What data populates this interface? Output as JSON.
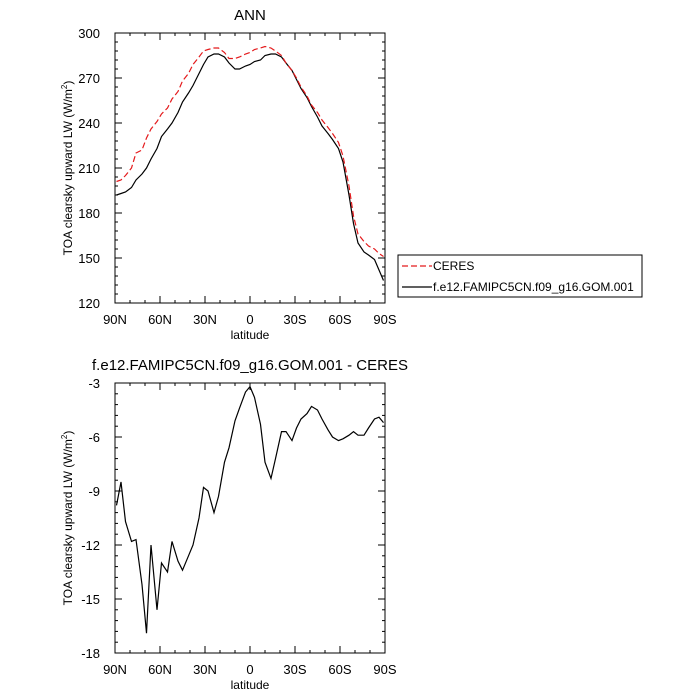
{
  "chart_data": [
    {
      "type": "line",
      "title": "ANN",
      "xlabel": "latitude",
      "ylabel": "TOA clearsky upward LW (W/m²)",
      "xlim": [
        90,
        -90
      ],
      "ylim": [
        120,
        300
      ],
      "xticks": [
        90,
        60,
        30,
        0,
        -30,
        -60,
        -90
      ],
      "xtick_labels": [
        "90N",
        "60N",
        "30N",
        "0",
        "30S",
        "60S",
        "90S"
      ],
      "yticks": [
        120,
        150,
        180,
        210,
        240,
        270,
        300
      ],
      "ytick_labels": [
        "120",
        "150",
        "180",
        "210",
        "240",
        "270",
        "300"
      ],
      "grid": false,
      "legend_position": "right",
      "series": [
        {
          "name": "CERES",
          "color": "#e41a1c",
          "dash": "dashed",
          "x": [
            89,
            86,
            83,
            79,
            76,
            72,
            69,
            66,
            62,
            59,
            55,
            52,
            48,
            45,
            41,
            38,
            34,
            31,
            28,
            24,
            21,
            17,
            14,
            10,
            7,
            3,
            0,
            -3,
            -7,
            -10,
            -14,
            -17,
            -21,
            -24,
            -28,
            -31,
            -34,
            -38,
            -41,
            -45,
            -48,
            -52,
            -55,
            -59,
            -62,
            -66,
            -69,
            -72,
            -76,
            -79,
            -83,
            -86,
            -89
          ],
          "y": [
            201,
            202,
            205,
            210,
            220,
            222,
            230,
            236,
            241,
            246,
            250,
            256,
            261,
            268,
            273,
            279,
            284,
            288,
            289,
            290,
            290,
            287,
            283,
            283,
            284,
            286,
            287,
            289,
            290,
            291,
            290,
            288,
            285,
            280,
            275,
            270,
            264,
            258,
            252,
            247,
            242,
            237,
            233,
            227,
            218,
            198,
            178,
            166,
            161,
            158,
            156,
            153,
            151
          ]
        },
        {
          "name": "f.e12.FAMIPC5CN.f09_g16.GOM.001",
          "color": "#000000",
          "dash": "solid",
          "x": [
            89,
            86,
            83,
            79,
            76,
            72,
            69,
            66,
            62,
            59,
            55,
            52,
            48,
            45,
            41,
            38,
            34,
            31,
            28,
            24,
            21,
            17,
            14,
            10,
            7,
            3,
            0,
            -3,
            -7,
            -10,
            -14,
            -17,
            -21,
            -24,
            -28,
            -31,
            -34,
            -38,
            -41,
            -45,
            -48,
            -52,
            -55,
            -59,
            -62,
            -66,
            -69,
            -72,
            -76,
            -79,
            -83,
            -86,
            -89
          ],
          "y": [
            192,
            193,
            194,
            197,
            202,
            206,
            210,
            216,
            223,
            231,
            236,
            240,
            247,
            254,
            260,
            265,
            273,
            279,
            284,
            286,
            286,
            284,
            280,
            276,
            276,
            278,
            279,
            281,
            282,
            285,
            286,
            286,
            284,
            280,
            275,
            269,
            263,
            257,
            251,
            244,
            238,
            233,
            229,
            223,
            214,
            192,
            173,
            160,
            154,
            152,
            149,
            142,
            135
          ]
        }
      ]
    },
    {
      "type": "line",
      "title": "f.e12.FAMIPC5CN.f09_g16.GOM.001 - CERES",
      "xlabel": "latitude",
      "ylabel": "TOA clearsky upward LW (W/m²)",
      "xlim": [
        90,
        -90
      ],
      "ylim": [
        -18,
        -3
      ],
      "xticks": [
        90,
        60,
        30,
        0,
        -30,
        -60,
        -90
      ],
      "xtick_labels": [
        "90N",
        "60N",
        "30N",
        "0",
        "30S",
        "60S",
        "90S"
      ],
      "yticks": [
        -18,
        -15,
        -12,
        -9,
        -6,
        -3
      ],
      "ytick_labels": [
        "-18",
        "-15",
        "-12",
        "-9",
        "-6",
        "-3"
      ],
      "grid": false,
      "series": [
        {
          "color": "#000000",
          "dash": "solid",
          "x": [
            89,
            86,
            83,
            79,
            76,
            72,
            69,
            66,
            62,
            59,
            55,
            52,
            48,
            45,
            41,
            38,
            34,
            31,
            28,
            24,
            21,
            17,
            14,
            10,
            7,
            3,
            0,
            -3,
            -7,
            -10,
            -14,
            -17,
            -21,
            -24,
            -28,
            -31,
            -34,
            -38,
            -41,
            -45,
            -48,
            -52,
            -55,
            -59,
            -62,
            -66,
            -69,
            -72,
            -76,
            -79,
            -83,
            -86,
            -89
          ],
          "y": [
            -9.8,
            -8.5,
            -10.7,
            -11.8,
            -11.7,
            -14.2,
            -16.9,
            -12.0,
            -15.6,
            -13.0,
            -13.5,
            -11.8,
            -12.9,
            -13.4,
            -12.6,
            -12.0,
            -10.5,
            -8.8,
            -9.0,
            -10.2,
            -9.3,
            -7.4,
            -6.6,
            -5.1,
            -4.4,
            -3.5,
            -3.2,
            -3.8,
            -5.3,
            -7.4,
            -8.3,
            -7.2,
            -5.7,
            -5.7,
            -6.2,
            -5.5,
            -5.0,
            -4.7,
            -4.3,
            -4.5,
            -5.0,
            -5.6,
            -6.0,
            -6.2,
            -6.1,
            -5.9,
            -5.7,
            -5.9,
            -5.9,
            -5.5,
            -5.0,
            -4.9,
            -5.2
          ]
        }
      ]
    }
  ]
}
